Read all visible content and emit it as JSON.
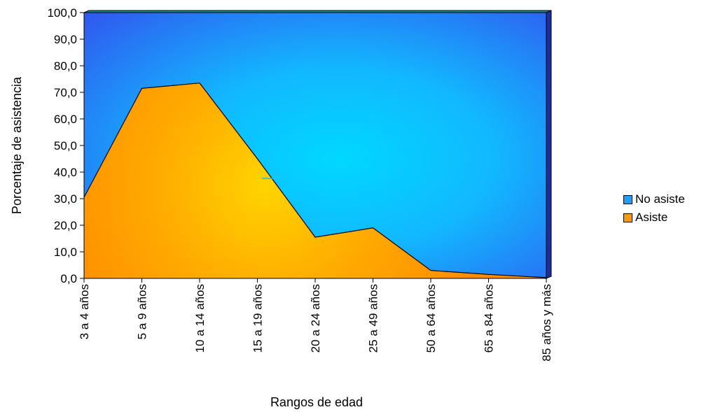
{
  "chart_data": {
    "type": "area",
    "stacked_percent": true,
    "categories": [
      "3 a 4 años",
      "5 a 9 años",
      "10 a 14 años",
      "15 a 19 años",
      "20 a 24 años",
      "25 a  49 años",
      "50 a 64 años",
      "65 a 84 años",
      "85 años y más"
    ],
    "series": [
      {
        "name": "Asiste",
        "values": [
          30.5,
          71.5,
          73.5,
          45.0,
          15.5,
          19.0,
          3.0,
          1.5,
          0.3
        ],
        "color": "#ff9a00"
      },
      {
        "name": "No asiste",
        "values": [
          69.5,
          28.5,
          26.5,
          55.0,
          84.5,
          81.0,
          97.0,
          98.5,
          99.7
        ],
        "color": "#1ea0ff"
      }
    ],
    "xlabel": "Rangos de edad",
    "ylabel": "Porcentaje de asistencia",
    "ylim": [
      0,
      100
    ],
    "yticks": [
      "0,0",
      "10,0",
      "20,0",
      "30,0",
      "40,0",
      "50,0",
      "60,0",
      "70,0",
      "80,0",
      "90,0",
      "100,0"
    ],
    "legend_position": "right",
    "grid": false
  }
}
